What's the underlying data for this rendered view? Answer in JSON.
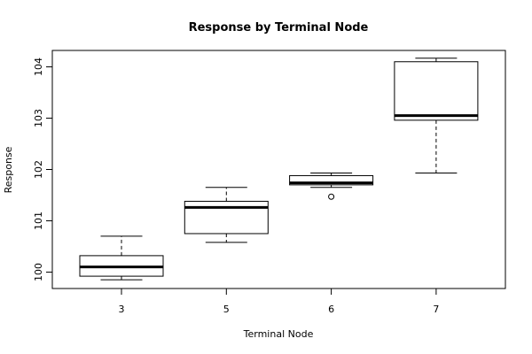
{
  "chart_data": {
    "type": "boxplot",
    "title": "Response by Terminal Node",
    "xlabel": "Terminal Node",
    "ylabel": "Response",
    "categories": [
      "3",
      "5",
      "6",
      "7"
    ],
    "boxes": [
      {
        "category": "3",
        "whisker_low": 99.85,
        "q1": 99.92,
        "median": 100.1,
        "q3": 100.32,
        "whisker_high": 100.7,
        "outliers": []
      },
      {
        "category": "5",
        "whisker_low": 100.58,
        "q1": 100.75,
        "median": 101.26,
        "q3": 101.38,
        "whisker_high": 101.65,
        "outliers": []
      },
      {
        "category": "6",
        "whisker_low": 101.65,
        "q1": 101.7,
        "median": 101.74,
        "q3": 101.88,
        "whisker_high": 101.93,
        "outliers": [
          101.47
        ]
      },
      {
        "category": "7",
        "whisker_low": 101.93,
        "q1": 102.96,
        "median": 103.05,
        "q3": 104.1,
        "whisker_high": 104.17,
        "outliers": []
      }
    ],
    "y_ticks": [
      "100",
      "101",
      "102",
      "103",
      "104"
    ],
    "ylim": [
      99.68,
      104.32
    ],
    "grid": false
  }
}
